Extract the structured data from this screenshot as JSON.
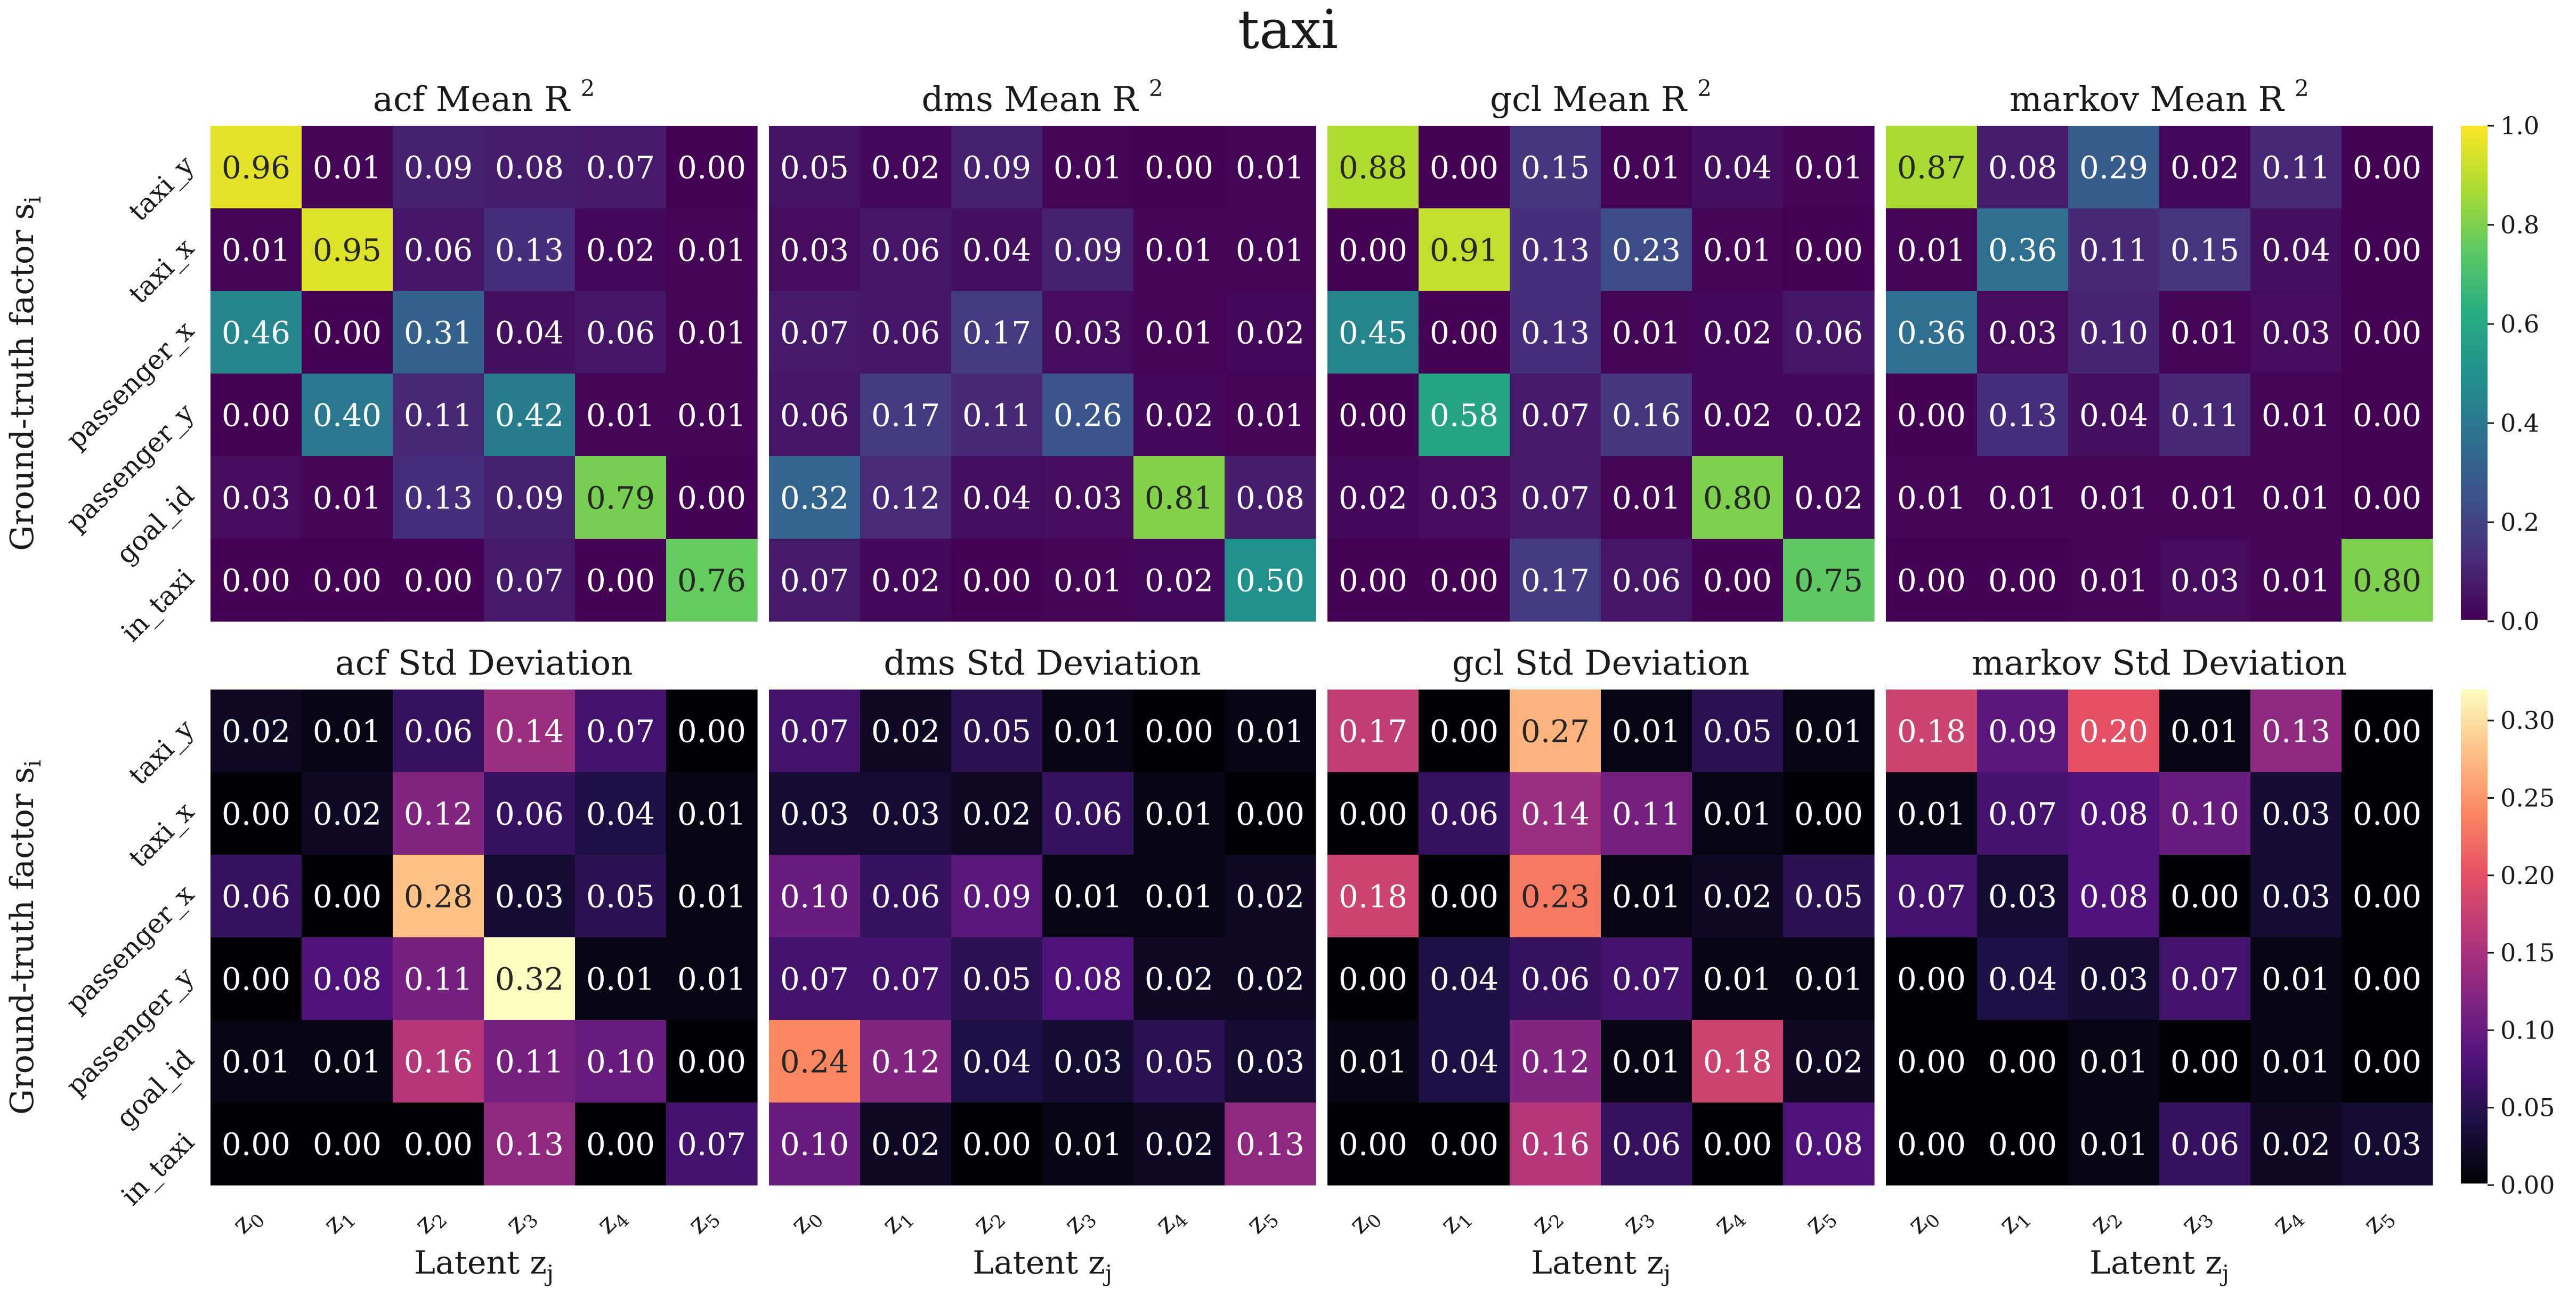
{
  "figure": {
    "title": "taxi"
  },
  "chart_data": [
    {
      "type": "heatmap",
      "title": "acf Mean R",
      "title_sup": "2",
      "cmap": "viridis",
      "vrange": [
        0.0,
        1.0
      ],
      "row_labels": [
        "taxi_y",
        "taxi_x",
        "passenger_x",
        "passenger_y",
        "goal_id",
        "in_taxi"
      ],
      "col_labels": [
        "z0",
        "z1",
        "z2",
        "z3",
        "z4",
        "z5"
      ],
      "values": [
        [
          0.96,
          0.01,
          0.09,
          0.08,
          0.07,
          0.0
        ],
        [
          0.01,
          0.95,
          0.06,
          0.13,
          0.02,
          0.01
        ],
        [
          0.46,
          0.0,
          0.31,
          0.04,
          0.06,
          0.01
        ],
        [
          0.0,
          0.4,
          0.11,
          0.42,
          0.01,
          0.01
        ],
        [
          0.03,
          0.01,
          0.13,
          0.09,
          0.79,
          0.0
        ],
        [
          0.0,
          0.0,
          0.0,
          0.07,
          0.0,
          0.76
        ]
      ],
      "labels": [
        [
          "0.96",
          "0.01",
          "0.09",
          "0.08",
          "0.07",
          "0.00"
        ],
        [
          "0.01",
          "0.95",
          "0.06",
          "0.13",
          "0.02",
          "0.01"
        ],
        [
          "0.46",
          "0.00",
          "0.31",
          "0.04",
          "0.06",
          "0.01"
        ],
        [
          "0.00",
          "0.40",
          "0.11",
          "0.42",
          "0.01",
          "0.01"
        ],
        [
          "0.03",
          "0.01",
          "0.13",
          "0.09",
          "0.79",
          "0.00"
        ],
        [
          "0.00",
          "0.00",
          "0.00",
          "0.07",
          "0.00",
          "0.76"
        ]
      ],
      "ylabel": "Ground-truth factor s",
      "ylabel_sub": "i"
    },
    {
      "type": "heatmap",
      "title": "dms Mean R",
      "title_sup": "2",
      "cmap": "viridis",
      "vrange": [
        0.0,
        1.0
      ],
      "values": [
        [
          0.05,
          0.02,
          0.09,
          0.01,
          0.0,
          0.01
        ],
        [
          0.03,
          0.06,
          0.04,
          0.09,
          0.01,
          0.01
        ],
        [
          0.07,
          0.06,
          0.17,
          0.03,
          0.01,
          0.02
        ],
        [
          0.06,
          0.17,
          0.11,
          0.26,
          0.02,
          0.01
        ],
        [
          0.32,
          0.12,
          0.04,
          0.03,
          0.81,
          0.08
        ],
        [
          0.07,
          0.02,
          0.0,
          0.01,
          0.02,
          0.5
        ]
      ],
      "labels": [
        [
          "0.05",
          "0.02",
          "0.09",
          "0.01",
          "0.00",
          "0.01"
        ],
        [
          "0.03",
          "0.06",
          "0.04",
          "0.09",
          "0.01",
          "0.01"
        ],
        [
          "0.07",
          "0.06",
          "0.17",
          "0.03",
          "0.01",
          "0.02"
        ],
        [
          "0.06",
          "0.17",
          "0.11",
          "0.26",
          "0.02",
          "0.01"
        ],
        [
          "0.32",
          "0.12",
          "0.04",
          "0.03",
          "0.81",
          "0.08"
        ],
        [
          "0.07",
          "0.02",
          "0.00",
          "0.01",
          "0.02",
          "0.50"
        ]
      ]
    },
    {
      "type": "heatmap",
      "title": "gcl Mean R",
      "title_sup": "2",
      "cmap": "viridis",
      "vrange": [
        0.0,
        1.0
      ],
      "values": [
        [
          0.88,
          0.0,
          0.15,
          0.01,
          0.04,
          0.01
        ],
        [
          0.0,
          0.91,
          0.13,
          0.23,
          0.01,
          0.0
        ],
        [
          0.45,
          0.0,
          0.13,
          0.01,
          0.02,
          0.06
        ],
        [
          0.0,
          0.58,
          0.07,
          0.16,
          0.02,
          0.02
        ],
        [
          0.02,
          0.03,
          0.07,
          0.01,
          0.8,
          0.02
        ],
        [
          0.0,
          0.0,
          0.17,
          0.06,
          0.0,
          0.75
        ]
      ],
      "labels": [
        [
          "0.88",
          "0.00",
          "0.15",
          "0.01",
          "0.04",
          "0.01"
        ],
        [
          "0.00",
          "0.91",
          "0.13",
          "0.23",
          "0.01",
          "0.00"
        ],
        [
          "0.45",
          "0.00",
          "0.13",
          "0.01",
          "0.02",
          "0.06"
        ],
        [
          "0.00",
          "0.58",
          "0.07",
          "0.16",
          "0.02",
          "0.02"
        ],
        [
          "0.02",
          "0.03",
          "0.07",
          "0.01",
          "0.80",
          "0.02"
        ],
        [
          "0.00",
          "0.00",
          "0.17",
          "0.06",
          "0.00",
          "0.75"
        ]
      ]
    },
    {
      "type": "heatmap",
      "title": "markov Mean R",
      "title_sup": "2",
      "cmap": "viridis",
      "vrange": [
        0.0,
        1.0
      ],
      "values": [
        [
          0.87,
          0.08,
          0.29,
          0.02,
          0.11,
          0.0
        ],
        [
          0.01,
          0.36,
          0.11,
          0.15,
          0.04,
          0.0
        ],
        [
          0.36,
          0.03,
          0.1,
          0.01,
          0.03,
          0.0
        ],
        [
          0.0,
          0.13,
          0.04,
          0.11,
          0.01,
          0.0
        ],
        [
          0.01,
          0.01,
          0.01,
          0.01,
          0.01,
          0.0
        ],
        [
          0.0,
          0.0,
          0.01,
          0.03,
          0.01,
          0.8
        ]
      ],
      "labels": [
        [
          "0.87",
          "0.08",
          "0.29",
          "0.02",
          "0.11",
          "0.00"
        ],
        [
          "0.01",
          "0.36",
          "0.11",
          "0.15",
          "0.04",
          "0.00"
        ],
        [
          "0.36",
          "0.03",
          "0.10",
          "0.01",
          "0.03",
          "0.00"
        ],
        [
          "0.00",
          "0.13",
          "0.04",
          "0.11",
          "0.01",
          "0.00"
        ],
        [
          "0.01",
          "0.01",
          "0.01",
          "0.01",
          "0.01",
          "0.00"
        ],
        [
          "0.00",
          "0.00",
          "0.01",
          "0.03",
          "0.01",
          "0.80"
        ]
      ],
      "colorbar_ticks": [
        "0.0",
        "0.2",
        "0.4",
        "0.6",
        "0.8",
        "1.0"
      ],
      "colorbar_tick_values": [
        0.0,
        0.2,
        0.4,
        0.6,
        0.8,
        1.0
      ]
    },
    {
      "type": "heatmap",
      "title": "acf Std Deviation",
      "cmap": "magma",
      "vrange": [
        0.0,
        0.32
      ],
      "row_labels": [
        "taxi_y",
        "taxi_x",
        "passenger_x",
        "passenger_y",
        "goal_id",
        "in_taxi"
      ],
      "col_labels": [
        "z0",
        "z1",
        "z2",
        "z3",
        "z4",
        "z5"
      ],
      "values": [
        [
          0.02,
          0.01,
          0.06,
          0.14,
          0.07,
          0.0
        ],
        [
          0.0,
          0.02,
          0.12,
          0.06,
          0.04,
          0.01
        ],
        [
          0.06,
          0.0,
          0.28,
          0.03,
          0.05,
          0.01
        ],
        [
          0.0,
          0.08,
          0.11,
          0.32,
          0.01,
          0.01
        ],
        [
          0.01,
          0.01,
          0.16,
          0.11,
          0.1,
          0.0
        ],
        [
          0.0,
          0.0,
          0.0,
          0.13,
          0.0,
          0.07
        ]
      ],
      "labels": [
        [
          "0.02",
          "0.01",
          "0.06",
          "0.14",
          "0.07",
          "0.00"
        ],
        [
          "0.00",
          "0.02",
          "0.12",
          "0.06",
          "0.04",
          "0.01"
        ],
        [
          "0.06",
          "0.00",
          "0.28",
          "0.03",
          "0.05",
          "0.01"
        ],
        [
          "0.00",
          "0.08",
          "0.11",
          "0.32",
          "0.01",
          "0.01"
        ],
        [
          "0.01",
          "0.01",
          "0.16",
          "0.11",
          "0.10",
          "0.00"
        ],
        [
          "0.00",
          "0.00",
          "0.00",
          "0.13",
          "0.00",
          "0.07"
        ]
      ],
      "ylabel": "Ground-truth factor s",
      "ylabel_sub": "i",
      "xlabel": "Latent z",
      "xlabel_sub": "j"
    },
    {
      "type": "heatmap",
      "title": "dms Std Deviation",
      "cmap": "magma",
      "vrange": [
        0.0,
        0.32
      ],
      "col_labels": [
        "z0",
        "z1",
        "z2",
        "z3",
        "z4",
        "z5"
      ],
      "values": [
        [
          0.07,
          0.02,
          0.05,
          0.01,
          0.0,
          0.01
        ],
        [
          0.03,
          0.03,
          0.02,
          0.06,
          0.01,
          0.0
        ],
        [
          0.1,
          0.06,
          0.09,
          0.01,
          0.01,
          0.02
        ],
        [
          0.07,
          0.07,
          0.05,
          0.08,
          0.02,
          0.02
        ],
        [
          0.24,
          0.12,
          0.04,
          0.03,
          0.05,
          0.03
        ],
        [
          0.1,
          0.02,
          0.0,
          0.01,
          0.02,
          0.13
        ]
      ],
      "labels": [
        [
          "0.07",
          "0.02",
          "0.05",
          "0.01",
          "0.00",
          "0.01"
        ],
        [
          "0.03",
          "0.03",
          "0.02",
          "0.06",
          "0.01",
          "0.00"
        ],
        [
          "0.10",
          "0.06",
          "0.09",
          "0.01",
          "0.01",
          "0.02"
        ],
        [
          "0.07",
          "0.07",
          "0.05",
          "0.08",
          "0.02",
          "0.02"
        ],
        [
          "0.24",
          "0.12",
          "0.04",
          "0.03",
          "0.05",
          "0.03"
        ],
        [
          "0.10",
          "0.02",
          "0.00",
          "0.01",
          "0.02",
          "0.13"
        ]
      ],
      "xlabel": "Latent z",
      "xlabel_sub": "j"
    },
    {
      "type": "heatmap",
      "title": "gcl Std Deviation",
      "cmap": "magma",
      "vrange": [
        0.0,
        0.32
      ],
      "col_labels": [
        "z0",
        "z1",
        "z2",
        "z3",
        "z4",
        "z5"
      ],
      "values": [
        [
          0.17,
          0.0,
          0.27,
          0.01,
          0.05,
          0.01
        ],
        [
          0.0,
          0.06,
          0.14,
          0.11,
          0.01,
          0.0
        ],
        [
          0.18,
          0.0,
          0.23,
          0.01,
          0.02,
          0.05
        ],
        [
          0.0,
          0.04,
          0.06,
          0.07,
          0.01,
          0.01
        ],
        [
          0.01,
          0.04,
          0.12,
          0.01,
          0.18,
          0.02
        ],
        [
          0.0,
          0.0,
          0.16,
          0.06,
          0.0,
          0.08
        ]
      ],
      "labels": [
        [
          "0.17",
          "0.00",
          "0.27",
          "0.01",
          "0.05",
          "0.01"
        ],
        [
          "0.00",
          "0.06",
          "0.14",
          "0.11",
          "0.01",
          "0.00"
        ],
        [
          "0.18",
          "0.00",
          "0.23",
          "0.01",
          "0.02",
          "0.05"
        ],
        [
          "0.00",
          "0.04",
          "0.06",
          "0.07",
          "0.01",
          "0.01"
        ],
        [
          "0.01",
          "0.04",
          "0.12",
          "0.01",
          "0.18",
          "0.02"
        ],
        [
          "0.00",
          "0.00",
          "0.16",
          "0.06",
          "0.00",
          "0.08"
        ]
      ],
      "xlabel": "Latent z",
      "xlabel_sub": "j"
    },
    {
      "type": "heatmap",
      "title": "markov Std Deviation",
      "cmap": "magma",
      "vrange": [
        0.0,
        0.32
      ],
      "col_labels": [
        "z0",
        "z1",
        "z2",
        "z3",
        "z4",
        "z5"
      ],
      "values": [
        [
          0.18,
          0.09,
          0.2,
          0.01,
          0.13,
          0.0
        ],
        [
          0.01,
          0.07,
          0.08,
          0.1,
          0.03,
          0.0
        ],
        [
          0.07,
          0.03,
          0.08,
          0.0,
          0.03,
          0.0
        ],
        [
          0.0,
          0.04,
          0.03,
          0.07,
          0.01,
          0.0
        ],
        [
          0.0,
          0.0,
          0.01,
          0.0,
          0.01,
          0.0
        ],
        [
          0.0,
          0.0,
          0.01,
          0.06,
          0.02,
          0.03
        ]
      ],
      "labels": [
        [
          "0.18",
          "0.09",
          "0.20",
          "0.01",
          "0.13",
          "0.00"
        ],
        [
          "0.01",
          "0.07",
          "0.08",
          "0.10",
          "0.03",
          "0.00"
        ],
        [
          "0.07",
          "0.03",
          "0.08",
          "0.00",
          "0.03",
          "0.00"
        ],
        [
          "0.00",
          "0.04",
          "0.03",
          "0.07",
          "0.01",
          "0.00"
        ],
        [
          "0.00",
          "0.00",
          "0.01",
          "0.00",
          "0.01",
          "0.00"
        ],
        [
          "0.00",
          "0.00",
          "0.01",
          "0.06",
          "0.02",
          "0.03"
        ]
      ],
      "xlabel": "Latent z",
      "xlabel_sub": "j",
      "colorbar_ticks": [
        "0.00",
        "0.05",
        "0.10",
        "0.15",
        "0.20",
        "0.25",
        "0.30"
      ],
      "colorbar_tick_values": [
        0.0,
        0.05,
        0.1,
        0.15,
        0.2,
        0.25,
        0.3
      ]
    }
  ]
}
